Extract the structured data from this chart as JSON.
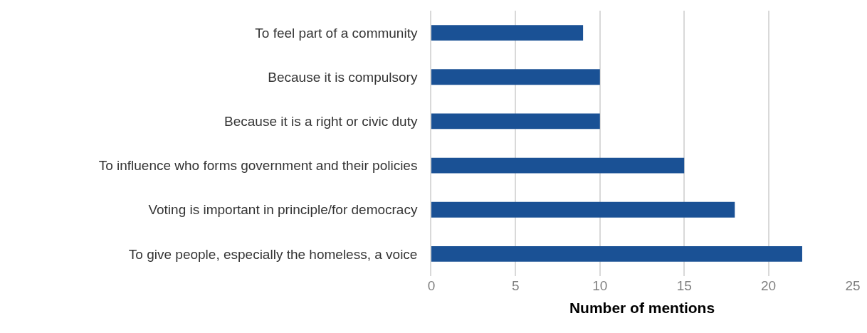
{
  "chart_data": {
    "type": "bar",
    "orientation": "horizontal",
    "xlabel": "Number of mentions",
    "categories": [
      "To feel part of a community",
      "Because it is compulsory",
      "Because it is a right or civic duty",
      "To influence who forms government and their policies",
      "Voting is important in principle/for democracy",
      "To give people, especially the homeless, a voice"
    ],
    "values": [
      9,
      10,
      10,
      15,
      18,
      22
    ],
    "color": "#1a5195",
    "xlim": [
      0,
      25
    ],
    "xticks": [
      0,
      5,
      10,
      15,
      20,
      25
    ],
    "grid": "x"
  }
}
